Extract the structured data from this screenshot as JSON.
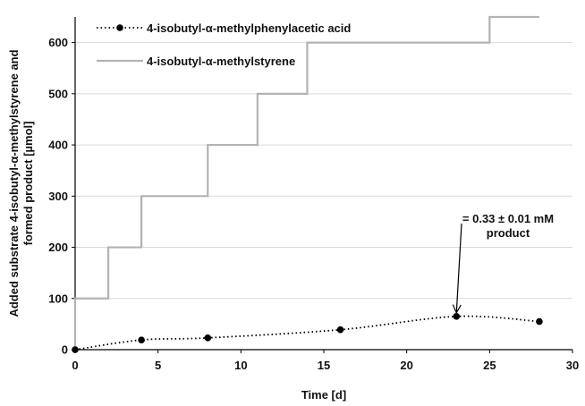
{
  "chart_data": {
    "type": "line",
    "xlabel": "Time [d]",
    "ylabel_lines": [
      "Added substrate 4-isobutyl-α-methylstyrene and",
      "formed product [µmol]"
    ],
    "xlim": [
      0,
      30
    ],
    "ylim": [
      0,
      650
    ],
    "xticks": [
      0,
      5,
      10,
      15,
      20,
      25,
      30
    ],
    "yticks": [
      0,
      100,
      200,
      300,
      400,
      500,
      600
    ],
    "grid": "horizontal",
    "legend_position": "top-left",
    "series": [
      {
        "name": "4-isobutyl-α-methylphenylacetic acid",
        "style": "dotted-markers",
        "color": "#000000",
        "x": [
          0,
          4,
          8,
          16,
          23,
          28
        ],
        "y": [
          0,
          19,
          23,
          39,
          65,
          55
        ]
      },
      {
        "name": "4-isobutyl-α-methylstyrene",
        "style": "step",
        "color": "#b3b3b3",
        "x": [
          0,
          0,
          2,
          2,
          4,
          4,
          8,
          8,
          11,
          11,
          14,
          14,
          25,
          25,
          28
        ],
        "y": [
          0,
          100,
          100,
          200,
          200,
          300,
          300,
          400,
          400,
          500,
          500,
          600,
          600,
          650,
          650
        ]
      }
    ],
    "annotation": {
      "lines": [
        "= 0.33 ± 0.01 mM",
        "product"
      ],
      "target": {
        "x": 23,
        "y": 65
      }
    }
  }
}
